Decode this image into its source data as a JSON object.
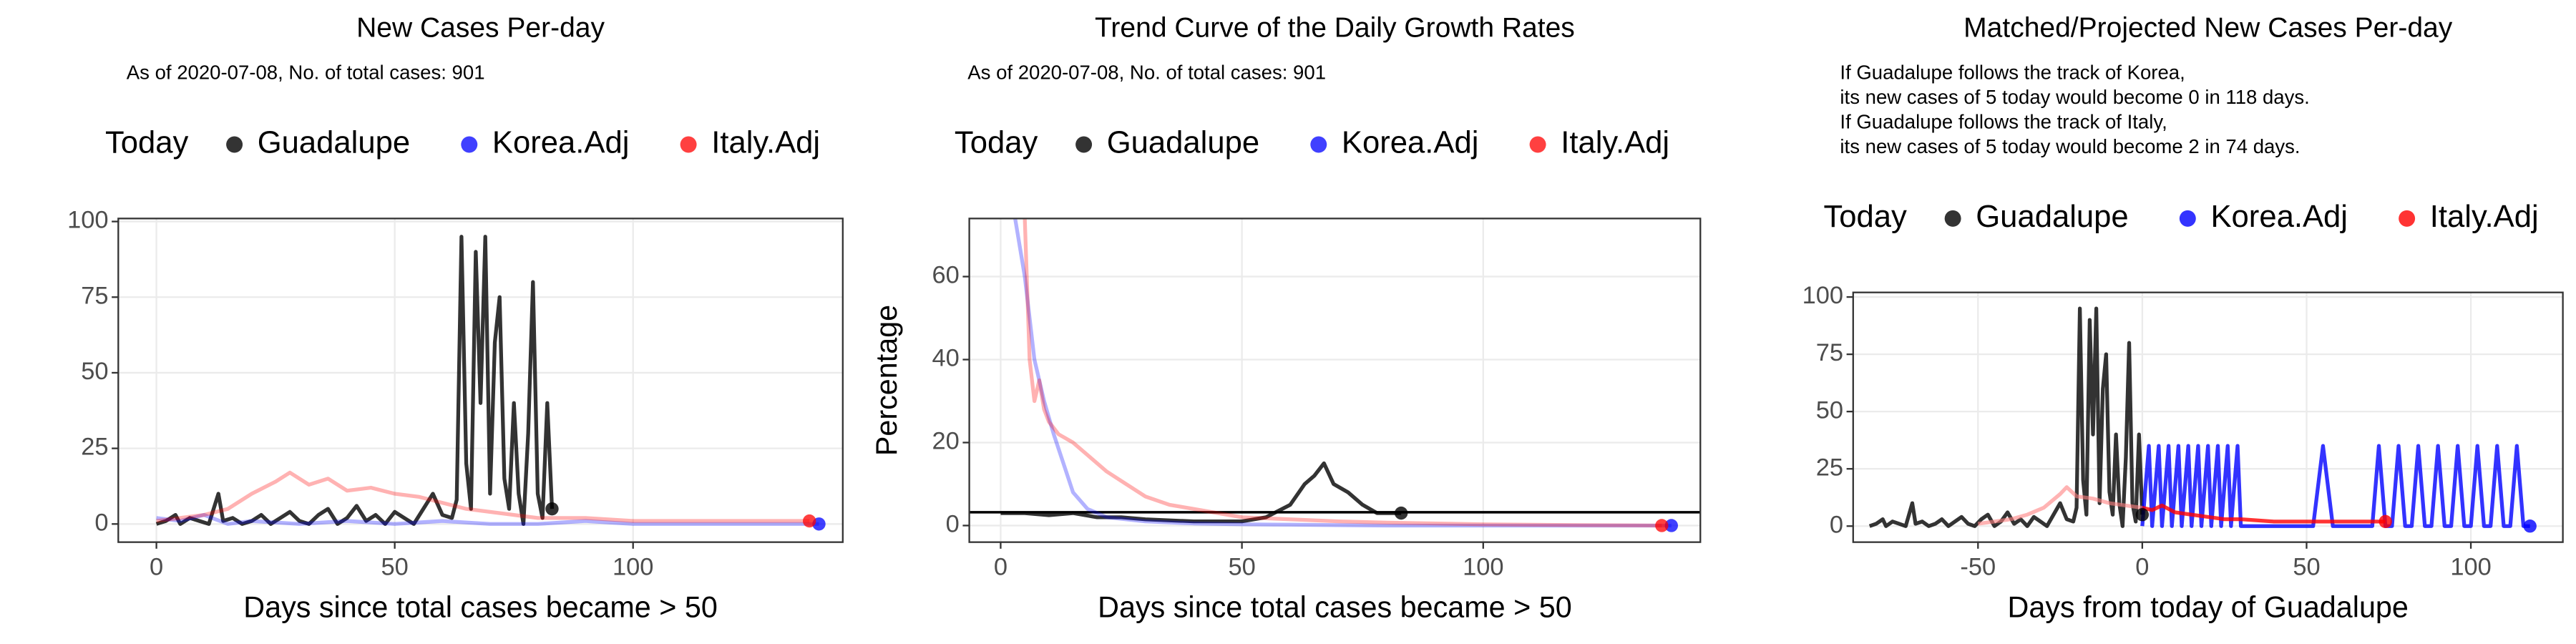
{
  "chart_data": [
    {
      "type": "line",
      "title": "New Cases Per-day",
      "subtitle": "As of 2020-07-08, No. of total cases: 901",
      "legend_title": "Today",
      "x_label": "Days since total cases became > 50",
      "xlim": [
        -8,
        144
      ],
      "xticks": [
        0,
        50,
        100
      ],
      "ylim": [
        -6,
        101
      ],
      "yticks": [
        0,
        25,
        50,
        75,
        100
      ],
      "grid": true,
      "series": [
        {
          "name": "Guadalupe",
          "color": "#000000",
          "opacity": 0.8,
          "x": [
            0,
            2,
            4,
            5,
            7,
            9,
            11,
            13,
            14,
            16,
            18,
            20,
            22,
            24,
            26,
            28,
            30,
            32,
            34,
            36,
            38,
            40,
            42,
            44,
            46,
            48,
            50,
            52,
            54,
            56,
            58,
            60,
            62,
            63,
            64,
            65,
            66,
            67,
            68,
            69,
            70,
            71,
            72,
            73,
            74,
            75,
            76,
            77,
            78,
            79,
            80,
            81,
            82,
            83
          ],
          "values": [
            0,
            1,
            3,
            0,
            2,
            1,
            0,
            10,
            1,
            2,
            0,
            1,
            3,
            0,
            2,
            4,
            1,
            0,
            3,
            5,
            0,
            2,
            6,
            1,
            3,
            0,
            4,
            2,
            0,
            5,
            10,
            3,
            2,
            8,
            95,
            20,
            5,
            90,
            40,
            95,
            10,
            60,
            75,
            15,
            5,
            40,
            10,
            0,
            30,
            80,
            10,
            2,
            40,
            5
          ]
        },
        {
          "name": "Korea.Adj",
          "color": "#0000ff",
          "opacity": 0.3,
          "x": [
            0,
            5,
            10,
            15,
            20,
            30,
            40,
            50,
            60,
            70,
            80,
            90,
            100,
            110,
            120,
            130,
            139
          ],
          "values": [
            2,
            1,
            3,
            0,
            1,
            0,
            1,
            0,
            1,
            0,
            0,
            1,
            0,
            0,
            0,
            0,
            0
          ]
        },
        {
          "name": "Italy.Adj",
          "color": "#ff0000",
          "opacity": 0.3,
          "x": [
            0,
            5,
            10,
            15,
            20,
            25,
            28,
            32,
            36,
            40,
            45,
            50,
            55,
            60,
            65,
            70,
            80,
            90,
            100,
            110,
            120,
            130,
            137
          ],
          "values": [
            1,
            2,
            3,
            5,
            10,
            14,
            17,
            13,
            15,
            11,
            12,
            10,
            9,
            7,
            5,
            4,
            2,
            2,
            1,
            1,
            1,
            1,
            1
          ]
        }
      ]
    },
    {
      "type": "line",
      "title": "Trend Curve of the Daily Growth Rates",
      "subtitle": "As of 2020-07-08, No. of total cases: 901",
      "legend_title": "Today",
      "x_label": "Days since total cases became > 50",
      "y_label": "Percentage",
      "xlim": [
        -6.5,
        145
      ],
      "xticks": [
        0,
        50,
        100
      ],
      "ylim": [
        -4,
        74
      ],
      "yticks": [
        0,
        20,
        40,
        60
      ],
      "grid": true,
      "hline": 3.2,
      "series": [
        {
          "name": "Guadalupe",
          "color": "#000000",
          "opacity": 0.8,
          "x": [
            0,
            5,
            10,
            15,
            20,
            25,
            30,
            40,
            50,
            55,
            60,
            63,
            65,
            67,
            69,
            72,
            75,
            78,
            83
          ],
          "values": [
            3,
            3,
            2.5,
            3,
            2,
            2,
            1.5,
            1,
            1,
            2,
            5,
            10,
            12,
            15,
            10,
            8,
            5,
            3,
            3
          ]
        },
        {
          "name": "Korea.Adj",
          "color": "#0000ff",
          "opacity": 0.3,
          "x": [
            3,
            5,
            7,
            9,
            11,
            13,
            15,
            18,
            22,
            26,
            30,
            40,
            50,
            60,
            80,
            100,
            120,
            139
          ],
          "values": [
            74,
            60,
            40,
            30,
            22,
            15,
            8,
            4,
            2,
            1.5,
            1,
            0.5,
            0.3,
            0.2,
            0,
            0,
            0,
            0
          ]
        },
        {
          "name": "Italy.Adj",
          "color": "#ff0000",
          "opacity": 0.3,
          "x": [
            5,
            6,
            7,
            8,
            9,
            10,
            12,
            15,
            18,
            22,
            26,
            30,
            35,
            40,
            50,
            60,
            70,
            80,
            100,
            120,
            137
          ],
          "values": [
            74,
            40,
            30,
            35,
            28,
            25,
            22,
            20,
            17,
            13,
            10,
            7,
            5,
            4,
            2,
            1.5,
            1,
            0.7,
            0.3,
            0.1,
            0
          ]
        }
      ]
    },
    {
      "type": "line",
      "title": "Matched/Projected New Cases Per-day",
      "subtitle": [
        "If Guadalupe follows the track of Korea,",
        "its new cases of 5 today would become 0 in 118 days.",
        "If Guadalupe follows the track of Italy,",
        "its new cases of 5 today would become 2 in 74 days."
      ],
      "legend_title": "Today",
      "x_label": "Days from today of Guadalupe",
      "xlim": [
        -88,
        128
      ],
      "xticks": [
        -50,
        0,
        50,
        100
      ],
      "ylim": [
        -7,
        102
      ],
      "yticks": [
        0,
        25,
        50,
        75,
        100
      ],
      "grid": true,
      "series": [
        {
          "name": "Guadalupe",
          "color": "#000000",
          "opacity": 0.8,
          "x": [
            -83,
            -81,
            -79,
            -78,
            -76,
            -74,
            -72,
            -70,
            -69,
            -67,
            -65,
            -63,
            -61,
            -59,
            -57,
            -55,
            -53,
            -51,
            -49,
            -47,
            -45,
            -43,
            -41,
            -39,
            -37,
            -35,
            -33,
            -31,
            -29,
            -27,
            -25,
            -23,
            -21,
            -20,
            -19,
            -18,
            -17,
            -16,
            -15,
            -14,
            -13,
            -12,
            -11,
            -10,
            -9,
            -8,
            -7,
            -6,
            -5,
            -4,
            -3,
            -2,
            -1,
            0
          ],
          "values": [
            0,
            1,
            3,
            0,
            2,
            1,
            0,
            10,
            1,
            2,
            0,
            1,
            3,
            0,
            2,
            4,
            1,
            0,
            3,
            5,
            0,
            2,
            6,
            1,
            3,
            0,
            4,
            2,
            0,
            5,
            10,
            3,
            2,
            8,
            95,
            20,
            5,
            90,
            40,
            95,
            10,
            60,
            75,
            15,
            5,
            40,
            10,
            0,
            30,
            80,
            10,
            2,
            40,
            5
          ]
        },
        {
          "name": "Korea.Adj",
          "color": "#0000ff",
          "opacity": 0.8,
          "x": [
            0,
            2,
            3,
            5,
            6,
            8,
            9,
            11,
            12,
            14,
            15,
            17,
            18,
            20,
            21,
            23,
            24,
            26,
            27,
            29,
            30,
            52,
            55,
            58,
            70,
            72,
            74,
            76,
            78,
            80,
            82,
            84,
            86,
            88,
            90,
            92,
            94,
            96,
            98,
            100,
            102,
            104,
            106,
            108,
            110,
            112,
            114,
            116,
            118
          ],
          "values": [
            0,
            35,
            0,
            35,
            0,
            35,
            0,
            35,
            0,
            35,
            0,
            35,
            0,
            35,
            0,
            35,
            0,
            35,
            0,
            35,
            0,
            0,
            35,
            0,
            0,
            35,
            0,
            0,
            35,
            0,
            0,
            35,
            0,
            0,
            35,
            0,
            0,
            35,
            0,
            0,
            35,
            0,
            0,
            35,
            0,
            0,
            35,
            0,
            0
          ]
        },
        {
          "name": "Italy.Adj",
          "color": "#ff0000",
          "opacity": 0.8,
          "x": [
            -50,
            -45,
            -40,
            -35,
            -30,
            -25,
            -23,
            -20,
            -15,
            -10,
            -5,
            0,
            3,
            6,
            10,
            15,
            20,
            25,
            30,
            40,
            50,
            60,
            70,
            74
          ],
          "values": [
            1,
            2,
            3,
            5,
            8,
            14,
            17,
            13,
            12,
            10,
            9,
            8,
            7,
            9,
            6,
            5,
            4,
            3,
            3,
            2,
            2,
            2,
            2,
            2
          ]
        }
      ]
    }
  ]
}
